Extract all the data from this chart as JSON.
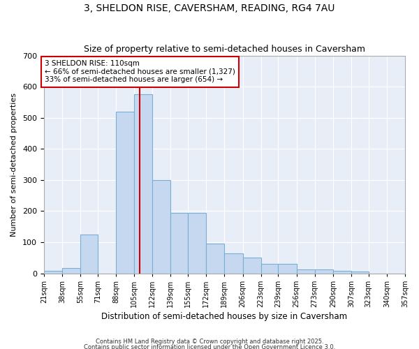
{
  "title1": "3, SHELDON RISE, CAVERSHAM, READING, RG4 7AU",
  "title2": "Size of property relative to semi-detached houses in Caversham",
  "xlabel": "Distribution of semi-detached houses by size in Caversham",
  "ylabel": "Number of semi-detached properties",
  "bar_color": "#c5d8f0",
  "bar_edge_color": "#7aafd4",
  "bin_edges": [
    21,
    38,
    55,
    71,
    88,
    105,
    122,
    139,
    155,
    172,
    189,
    206,
    223,
    239,
    256,
    273,
    290,
    307,
    323,
    340,
    357
  ],
  "bar_heights": [
    8,
    18,
    125,
    0,
    520,
    575,
    300,
    195,
    195,
    95,
    65,
    50,
    30,
    30,
    12,
    12,
    8,
    5,
    0,
    0
  ],
  "vline_x": 110,
  "vline_color": "#cc0000",
  "annotation_text": "3 SHELDON RISE: 110sqm\n← 66% of semi-detached houses are smaller (1,327)\n33% of semi-detached houses are larger (654) →",
  "annotation_box_color": "#ffffff",
  "annotation_box_edge_color": "#cc0000",
  "ylim": [
    0,
    700
  ],
  "yticks": [
    0,
    100,
    200,
    300,
    400,
    500,
    600,
    700
  ],
  "fig_bg_color": "#ffffff",
  "plot_bg_color": "#e8eef8",
  "grid_color": "#ffffff",
  "footer1": "Contains HM Land Registry data © Crown copyright and database right 2025.",
  "footer2": "Contains public sector information licensed under the Open Government Licence 3.0."
}
